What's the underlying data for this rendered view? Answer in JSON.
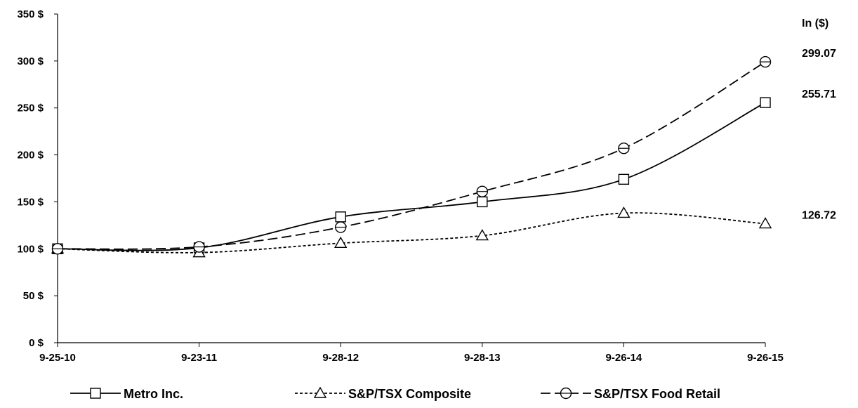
{
  "chart_data": {
    "type": "line",
    "title": "",
    "xlabel": "",
    "ylabel": "",
    "unit_label": "In ($)",
    "categories": [
      "9-25-10",
      "9-23-11",
      "9-28-12",
      "9-28-13",
      "9-26-14",
      "9-26-15"
    ],
    "ylim": [
      0,
      350
    ],
    "yticks": [
      0,
      50,
      100,
      150,
      200,
      250,
      300,
      350
    ],
    "ytick_labels": [
      "0 $",
      "50 $",
      "100 $",
      "150 $",
      "200 $",
      "250 $",
      "300 $",
      "350 $"
    ],
    "grid": false,
    "legend_position": "bottom",
    "series": [
      {
        "name": "Metro Inc.",
        "values": [
          100,
          101,
          134,
          150,
          174,
          255.71
        ],
        "end_label": "255.71",
        "marker": "square",
        "dash": "solid",
        "color": "#000000"
      },
      {
        "name": "S&P/TSX Composite",
        "values": [
          100,
          96,
          106,
          114,
          138,
          126.72
        ],
        "end_label": "126.72",
        "marker": "triangle",
        "dash": "dotted",
        "color": "#000000"
      },
      {
        "name": "S&P/TSX Food Retail",
        "values": [
          100,
          102,
          123,
          161,
          207,
          299.07
        ],
        "end_label": "299.07",
        "marker": "circle",
        "dash": "long-dash",
        "color": "#000000"
      }
    ]
  }
}
